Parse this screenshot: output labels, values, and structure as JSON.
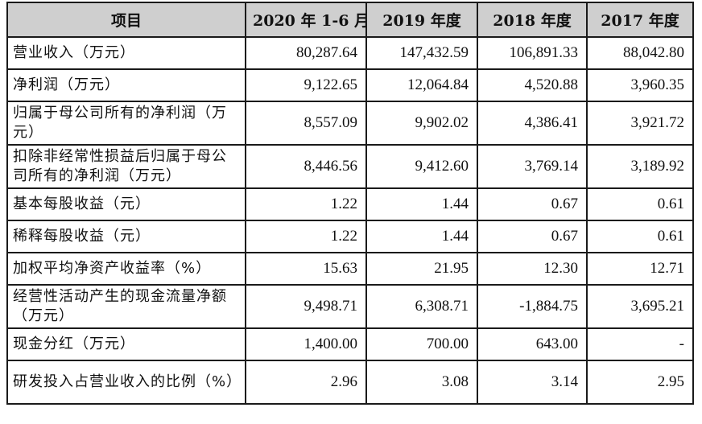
{
  "table": {
    "headers": [
      "项目",
      "2020 年 1-6 月",
      "2019 年度",
      "2018 年度",
      "2017 年度"
    ],
    "rows": [
      {
        "label": "营业收入（万元）",
        "values": [
          "80,287.64",
          "147,432.59",
          "106,891.33",
          "88,042.80"
        ]
      },
      {
        "label": "净利润（万元）",
        "values": [
          "9,122.65",
          "12,064.84",
          "4,520.88",
          "3,960.35"
        ]
      },
      {
        "label": "归属于母公司所有的净利润（万元）",
        "values": [
          "8,557.09",
          "9,902.02",
          "4,386.41",
          "3,921.72"
        ]
      },
      {
        "label": "扣除非经常性损益后归属于母公司所有的净利润（万元）",
        "values": [
          "8,446.56",
          "9,412.60",
          "3,769.14",
          "3,189.92"
        ]
      },
      {
        "label": "基本每股收益（元）",
        "values": [
          "1.22",
          "1.44",
          "0.67",
          "0.61"
        ]
      },
      {
        "label": "稀释每股收益（元）",
        "values": [
          "1.22",
          "1.44",
          "0.67",
          "0.61"
        ]
      },
      {
        "label": "加权平均净资产收益率（%）",
        "values": [
          "15.63",
          "21.95",
          "12.30",
          "12.71"
        ]
      },
      {
        "label": "经营性活动产生的现金流量净额（万元）",
        "values": [
          "9,498.71",
          "6,308.71",
          "-1,884.75",
          "3,695.21"
        ]
      },
      {
        "label": "现金分红（万元）",
        "values": [
          "1,400.00",
          "700.00",
          "643.00",
          "-"
        ]
      },
      {
        "label": "研发投入占营业收入的比例（%）",
        "values": [
          "2.96",
          "3.08",
          "3.14",
          "2.95"
        ]
      }
    ]
  }
}
